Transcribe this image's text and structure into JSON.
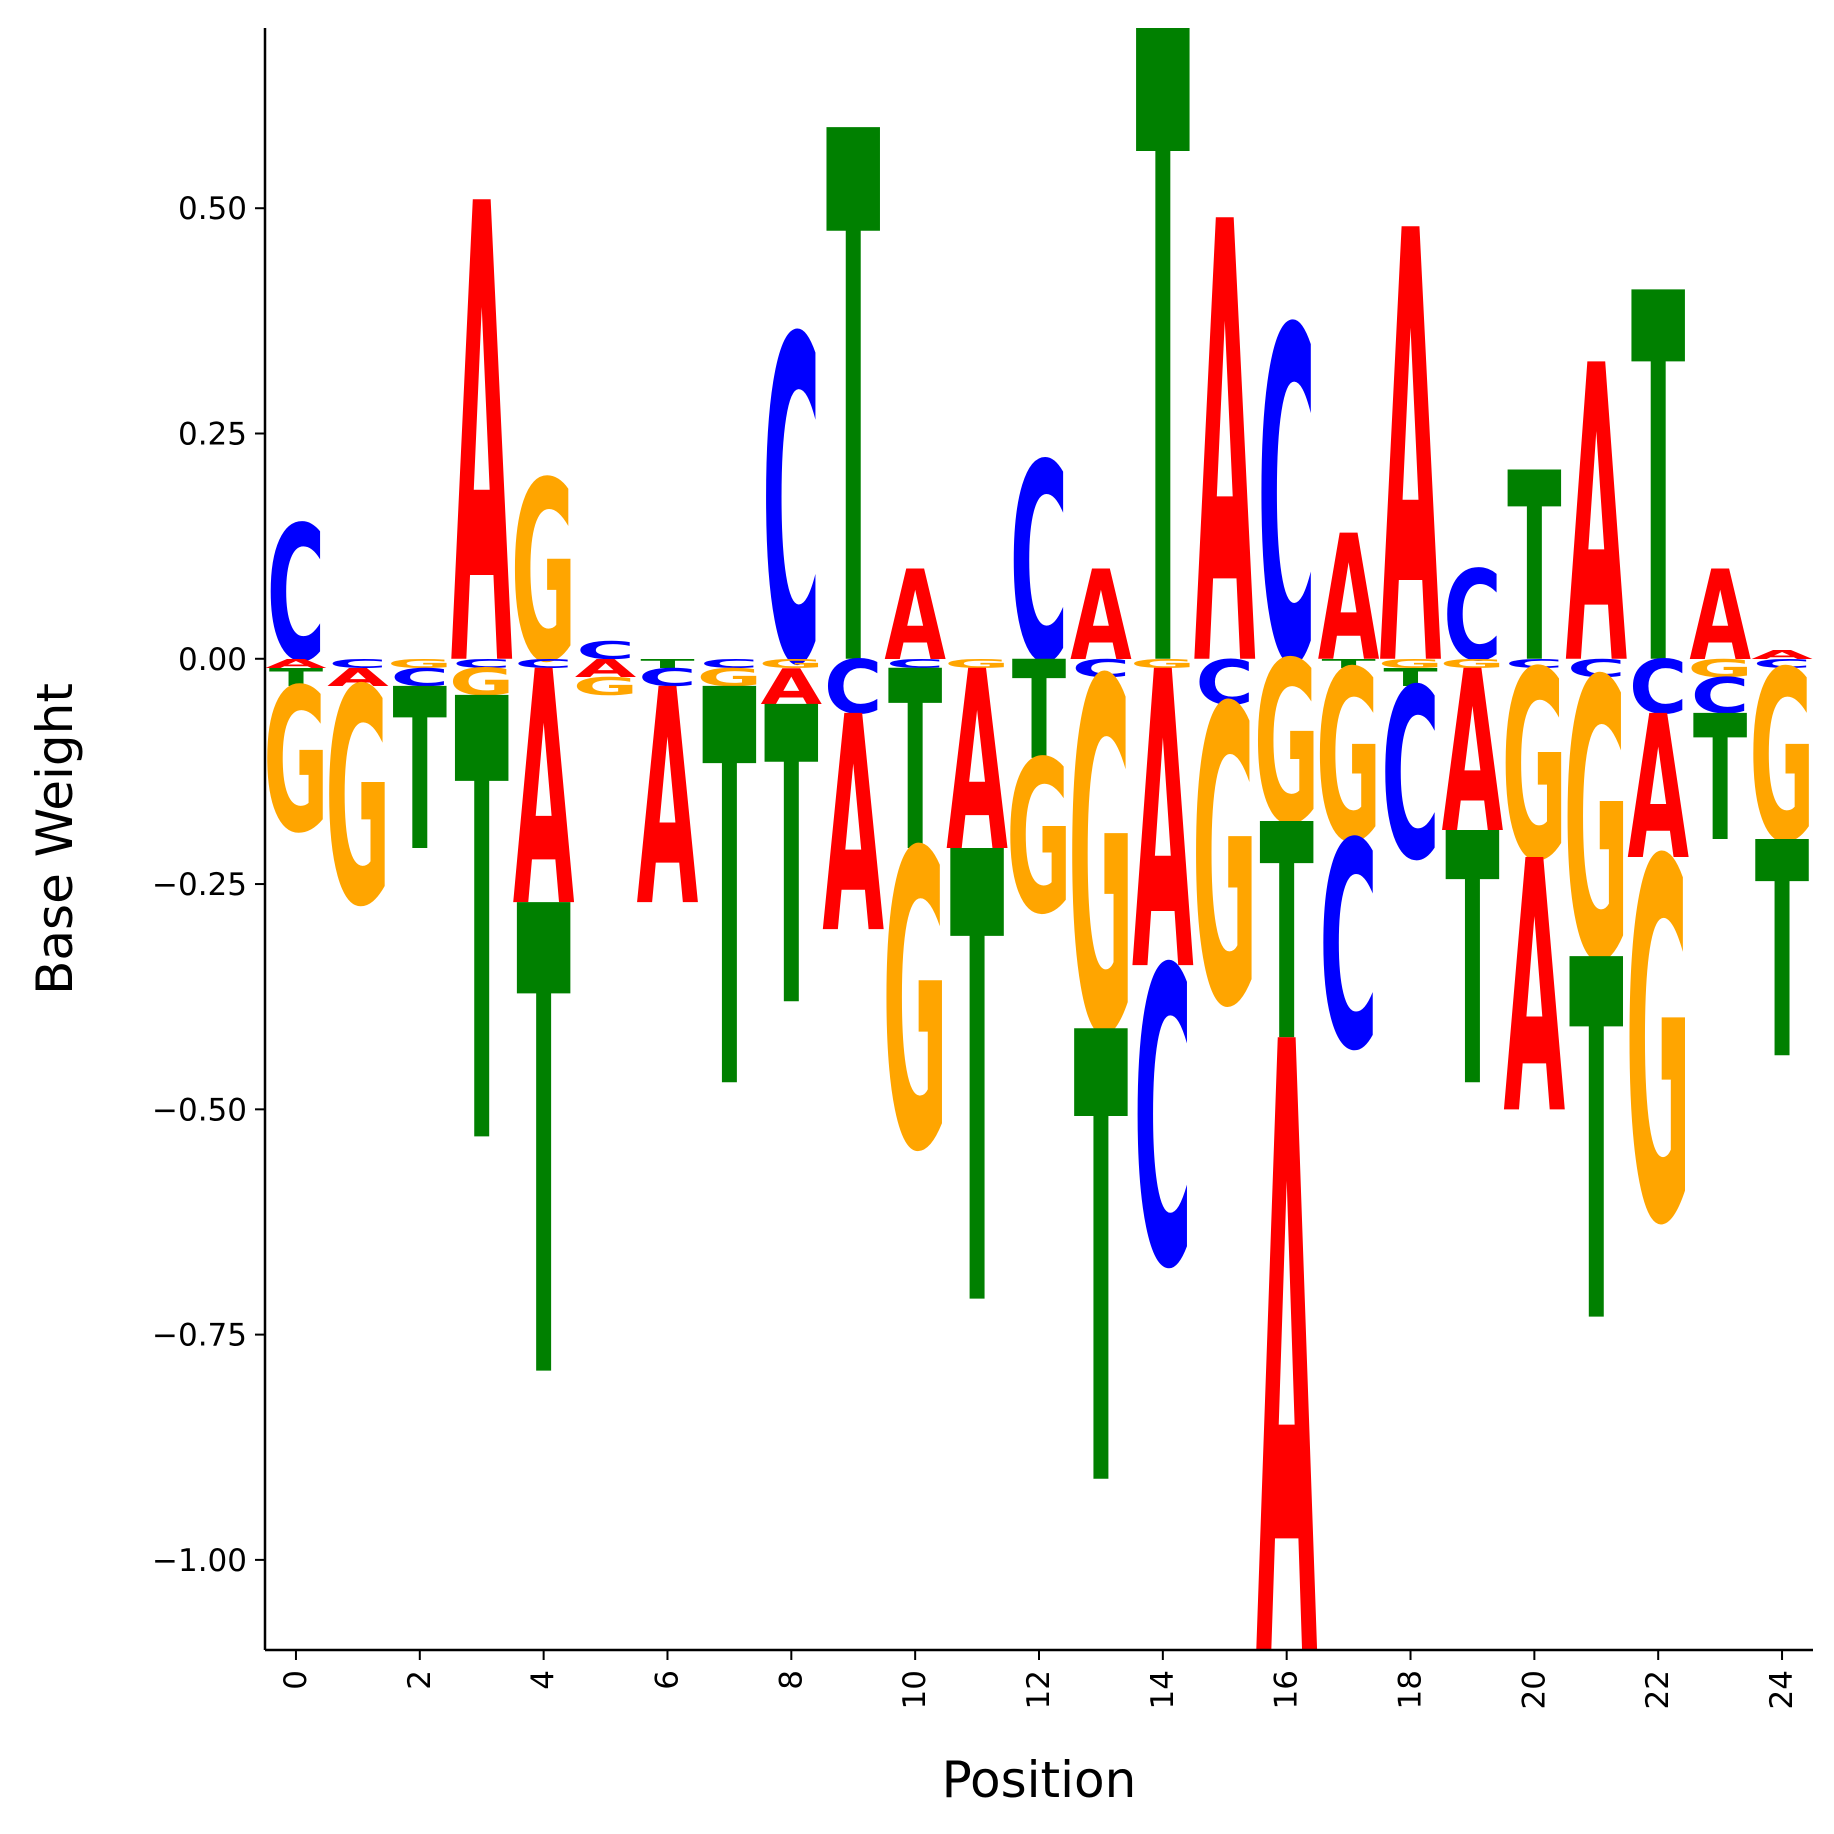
{
  "chart_data": {
    "type": "sequence-logo",
    "xlabel": "Position",
    "ylabel": "Base Weight",
    "xlim": [
      -0.5,
      24.5
    ],
    "ylim": [
      -1.1,
      0.7
    ],
    "yticks": [
      -1.0,
      -0.75,
      -0.5,
      -0.25,
      0.0,
      0.25,
      0.5
    ],
    "ytick_labels": [
      "−1.00",
      "−0.75",
      "−0.50",
      "−0.25",
      "0.00",
      "0.25",
      "0.50"
    ],
    "xticks": [
      0,
      2,
      4,
      6,
      8,
      10,
      12,
      14,
      16,
      18,
      20,
      22,
      24
    ],
    "xtick_labels": [
      "0",
      "2",
      "4",
      "6",
      "8",
      "10",
      "12",
      "14",
      "16",
      "18",
      "20",
      "22",
      "24"
    ],
    "colors": {
      "A": "#ff0000",
      "C": "#0000ff",
      "G": "#ffa500",
      "T": "#008000"
    },
    "positions": [
      {
        "pos": 0,
        "A": -0.01,
        "C": 0.15,
        "G": -0.16,
        "T": -0.02
      },
      {
        "pos": 1,
        "A": -0.02,
        "C": -0.01,
        "G": -0.24,
        "T": 0.0
      },
      {
        "pos": 2,
        "A": 0.0,
        "C": -0.02,
        "G": -0.01,
        "T": -0.18
      },
      {
        "pos": 3,
        "A": 0.51,
        "C": -0.01,
        "G": -0.03,
        "T": -0.49
      },
      {
        "pos": 4,
        "A": -0.26,
        "C": -0.01,
        "G": 0.2,
        "T": -0.52
      },
      {
        "pos": 5,
        "A": -0.02,
        "C": 0.02,
        "G": -0.02,
        "T": 0.0
      },
      {
        "pos": 6,
        "A": -0.24,
        "C": -0.02,
        "G": 0.0,
        "T": -0.01
      },
      {
        "pos": 7,
        "A": 0.0,
        "C": -0.01,
        "G": -0.02,
        "T": -0.44
      },
      {
        "pos": 8,
        "A": -0.04,
        "C": 0.36,
        "G": -0.01,
        "T": -0.33
      },
      {
        "pos": 9,
        "A": -0.24,
        "C": -0.06,
        "G": 0.0,
        "T": 0.59
      },
      {
        "pos": 10,
        "A": 0.1,
        "C": -0.01,
        "G": -0.33,
        "T": -0.2
      },
      {
        "pos": 11,
        "A": -0.2,
        "C": 0.0,
        "G": -0.01,
        "T": -0.5
      },
      {
        "pos": 12,
        "A": 0.0,
        "C": 0.22,
        "G": -0.17,
        "T": -0.11
      },
      {
        "pos": 13,
        "A": 0.1,
        "C": -0.02,
        "G": -0.39,
        "T": -0.5
      },
      {
        "pos": 14,
        "A": -0.33,
        "C": -0.33,
        "G": -0.01,
        "T": 0.7
      },
      {
        "pos": 15,
        "A": 0.49,
        "C": -0.05,
        "G": -0.33,
        "T": 0.0
      },
      {
        "pos": 16,
        "A": -0.68,
        "C": 0.37,
        "G": -0.18,
        "T": -0.24
      },
      {
        "pos": 17,
        "A": 0.14,
        "C": -0.23,
        "G": -0.19,
        "T": -0.01
      },
      {
        "pos": 18,
        "A": 0.48,
        "C": -0.19,
        "G": -0.01,
        "T": -0.02
      },
      {
        "pos": 19,
        "A": -0.18,
        "C": 0.1,
        "G": -0.01,
        "T": -0.28
      },
      {
        "pos": 20,
        "A": -0.28,
        "C": -0.01,
        "G": -0.21,
        "T": 0.21
      },
      {
        "pos": 21,
        "A": 0.33,
        "C": -0.02,
        "G": -0.31,
        "T": -0.4
      },
      {
        "pos": 22,
        "A": -0.16,
        "C": -0.06,
        "G": -0.4,
        "T": 0.41
      },
      {
        "pos": 23,
        "A": 0.1,
        "C": -0.04,
        "G": -0.02,
        "T": -0.14
      },
      {
        "pos": 24,
        "A": 0.01,
        "C": -0.01,
        "G": -0.19,
        "T": -0.24
      }
    ],
    "grid": false,
    "legend": "none"
  }
}
